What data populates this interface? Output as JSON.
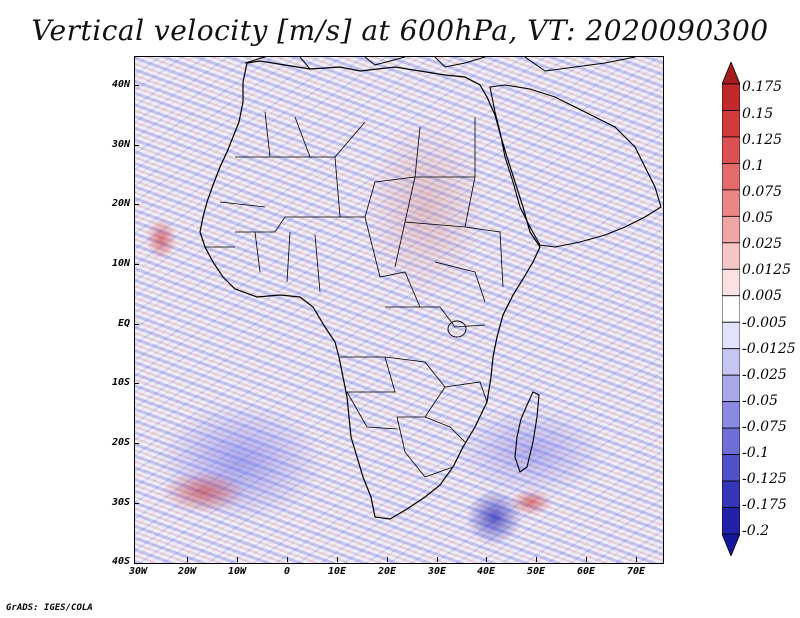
{
  "title": "Vertical velocity [m/s] at 600hPa, VT: 2020090300",
  "map": {
    "lat_labels": [
      "40N",
      "30N",
      "20N",
      "10N",
      "EQ",
      "10S",
      "20S",
      "30S",
      "40S"
    ],
    "lon_labels": [
      "30W",
      "20W",
      "10W",
      "0",
      "10E",
      "20E",
      "30E",
      "40E",
      "50E",
      "60E",
      "70E"
    ],
    "extent": {
      "lon_min": -30,
      "lon_max": 76,
      "lat_min": -40,
      "lat_max": 45
    },
    "field": "vertical velocity",
    "colors": {
      "positive": "#c8282a",
      "negative": "#3a3acc"
    }
  },
  "colorbar": {
    "levels": [
      "0.175",
      "0.15",
      "0.125",
      "0.1",
      "0.075",
      "0.05",
      "0.025",
      "0.0125",
      "0.005",
      "-0.005",
      "-0.0125",
      "-0.025",
      "-0.05",
      "-0.075",
      "-0.1",
      "-0.125",
      "-0.175",
      "-0.2"
    ],
    "colors": [
      "#a51c1c",
      "#c02a2a",
      "#d03b3b",
      "#dc5252",
      "#e46b6b",
      "#ea8686",
      "#f0a5a5",
      "#f6c6c6",
      "#fbe2e2",
      "#ffffff",
      "#e2e2fb",
      "#c6c6f3",
      "#a8a8ea",
      "#8a8ae0",
      "#6e6ed6",
      "#5050c8",
      "#3535b8",
      "#2222a8",
      "#16169a"
    ]
  },
  "footer": {
    "credit": "GrADS: IGES/COLA"
  }
}
